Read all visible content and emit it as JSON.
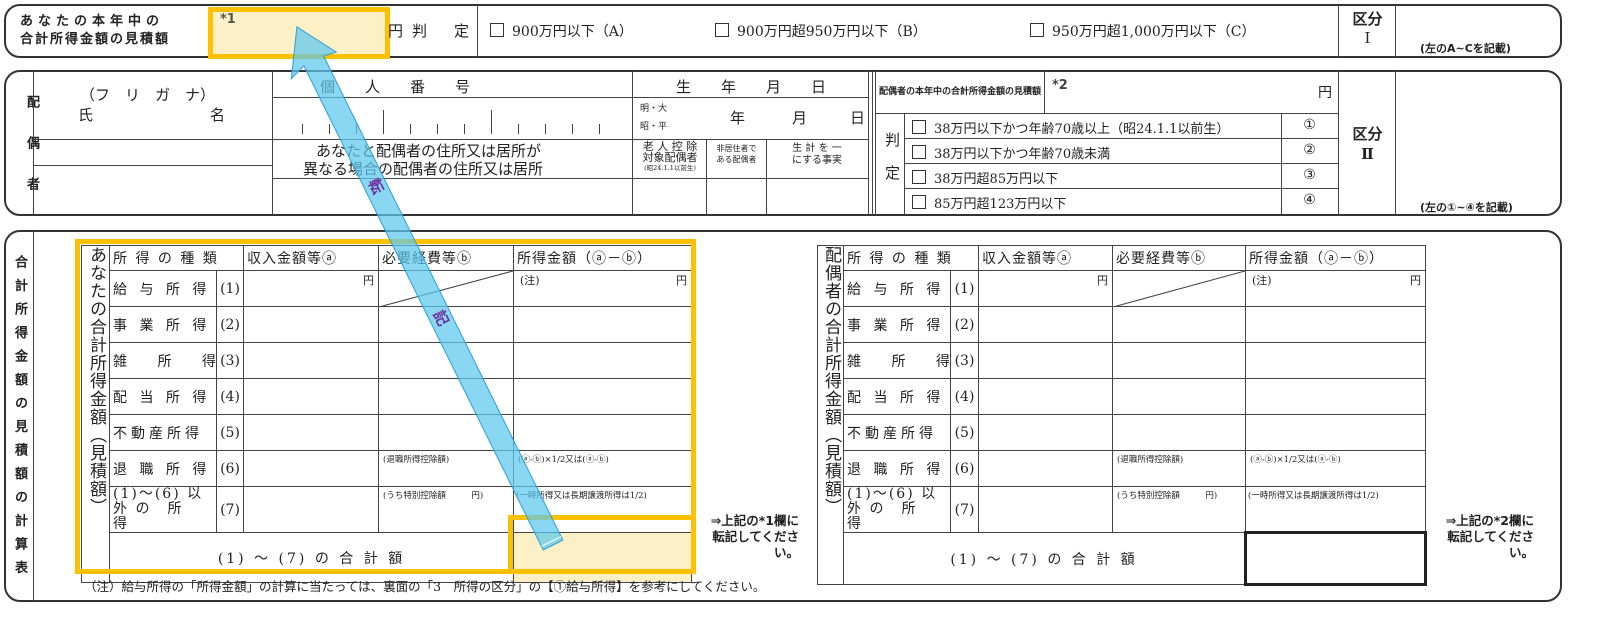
{
  "section1": {
    "label_line1": "あなたの本年中の",
    "label_line2": "合計所得金額の見積額",
    "field_mark": "*1",
    "yen": "円",
    "judgement": "判　定",
    "options": [
      "900万円以下（A）",
      "900万円超950万円以下（B）",
      "950万円超1,000万円以下（C）"
    ],
    "category_label": "区分",
    "category_num": "Ⅰ",
    "category_note": "(左のA~Cを記載)"
  },
  "spouse": {
    "side_label": "配偶者",
    "furigana": "（フ　リ　ガ　ナ）",
    "name_label_1": "氏",
    "name_label_2": "名",
    "my_number": "個　　人　　番　　号",
    "birth": "生　　年　　月　　日",
    "era_1": "明・大",
    "era_2": "昭・平",
    "year": "年",
    "month": "月",
    "day": "日",
    "address_line1": "あなたと配偶者の住所又は居所が",
    "address_line2": "異なる場合の配偶者の住所又は居所",
    "elderly_1": "老 人 控 除",
    "elderly_2": "対象配偶者",
    "elderly_3": "(昭24.1.1以前生)",
    "nonresident_1": "非居住者で",
    "nonresident_2": "ある配偶者",
    "livelihood_1": "生 計 を 一",
    "livelihood_2": "にする事実",
    "income_label": "配偶者の本年中の合計所得金額の見積額",
    "field_mark": "*2",
    "yen": "円",
    "judgement": "判定",
    "options": [
      {
        "label": "38万円以下かつ年齢70歳以上（昭24.1.1以前生）",
        "num": "①"
      },
      {
        "label": "38万円以下かつ年齢70歳未満",
        "num": "②"
      },
      {
        "label": "38万円超85万円以下",
        "num": "③"
      },
      {
        "label": "85万円超123万円以下",
        "num": "④"
      }
    ],
    "category_label": "区分",
    "category_num": "Ⅱ",
    "category_note": "(左の①~④を記載)"
  },
  "calc": {
    "side_label": "合計所得金額の見積額の計算表",
    "headers": [
      "所 得 の 種 類",
      "収入金額等ⓐ",
      "必要経費等ⓑ",
      "所得金額（ⓐ－ⓑ）"
    ],
    "kinds": [
      {
        "name": "給 与 所 得",
        "num": "(1)"
      },
      {
        "name": "事 業 所 得",
        "num": "(2)"
      },
      {
        "name": "雑　 所　 得",
        "num": "(3)"
      },
      {
        "name": "配 当 所 得",
        "num": "(4)"
      },
      {
        "name": "不動産所得",
        "num": "(5)"
      },
      {
        "name": "退 職 所 得",
        "num": "(6)"
      },
      {
        "name": "(1)～(6) 以 外 の　所　得",
        "num": "(7)"
      }
    ],
    "yen": "円",
    "note_mark": "(注)",
    "retirement_deduction": "(退職所得控除額)",
    "retirement_formula": "(ⓐ-ⓑ)×1/2又は(ⓐ-ⓑ)",
    "special_deduction": "(うち特別控除額　　　円)",
    "temporary_note": "(一時所得又は長期譲渡所得は1/2)",
    "total_label": "(1) ～ (7) の 合 計 額",
    "left": {
      "vertical_label": "あなたの合計所得金額（見積額）",
      "transfer_note": "⇒上記の*1欄に転記してください。"
    },
    "right": {
      "vertical_label": "配偶者の合計所得金額（見積額）",
      "transfer_note": "⇒上記の*2欄に転記してください。"
    },
    "footnote": "（注）給与所得の「所得金額」の計算に当たっては、裏面の「3　所得の区分」の【①給与所得】を参考にしてください。"
  },
  "annotation": {
    "arrow_text_1": "転",
    "arrow_text_2": "記",
    "highlight_color": "#FFC000",
    "highlight_fill": "#FDF0C6",
    "arrow_color": "#5BC8EF",
    "arrow_text_color": "#7030A0"
  }
}
